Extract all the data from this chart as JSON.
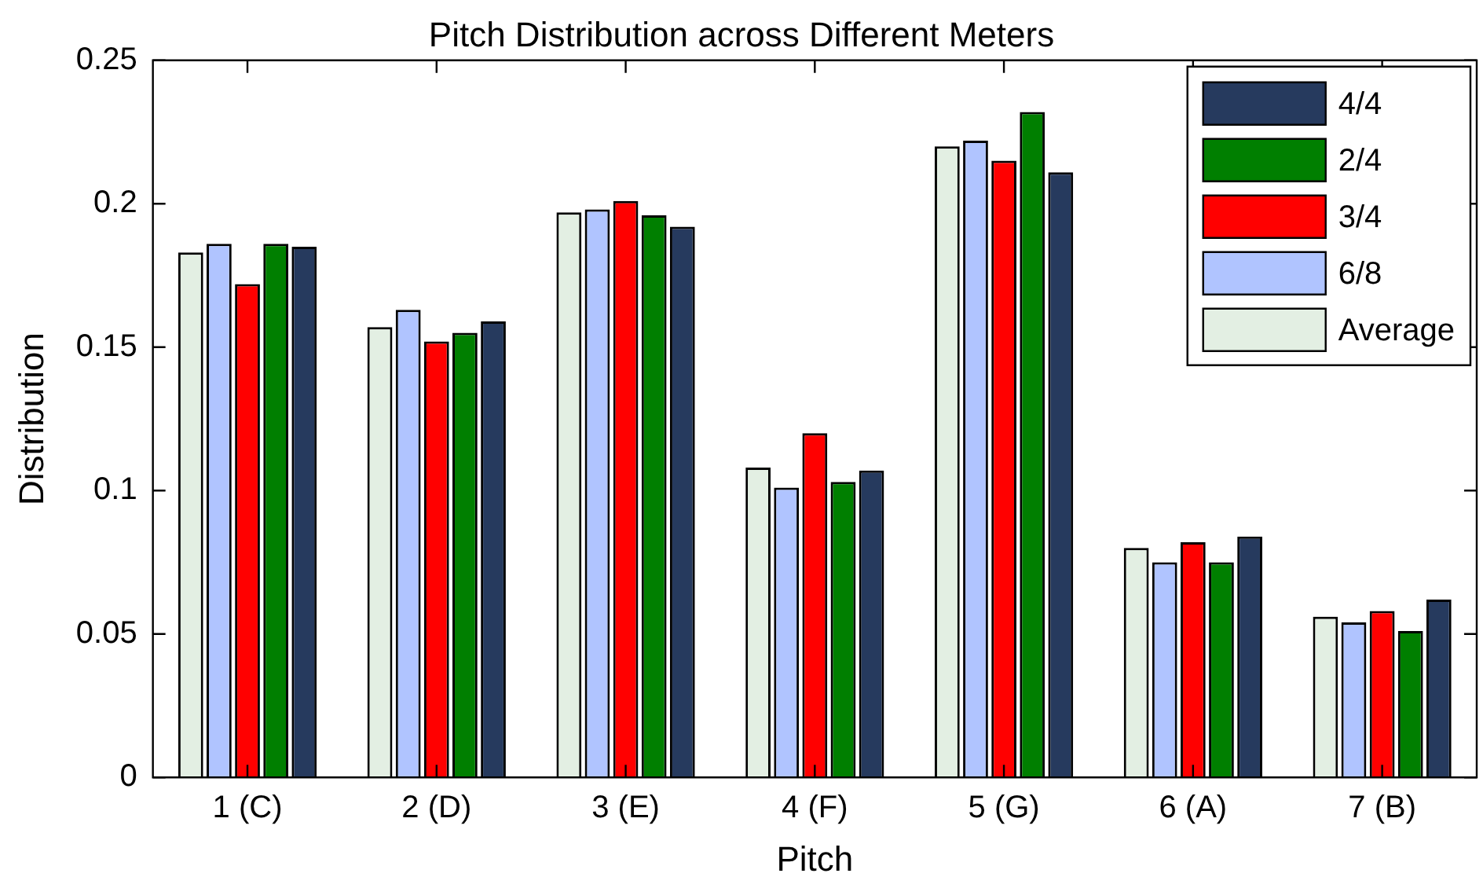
{
  "chart_data": {
    "type": "bar",
    "title": "Pitch Distribution across Different Meters",
    "xlabel": "Pitch",
    "ylabel": "Distribution",
    "categories": [
      "1 (C)",
      "2 (D)",
      "3 (E)",
      "4 (F)",
      "5 (G)",
      "6 (A)",
      "7 (B)"
    ],
    "series": [
      {
        "name": "Average",
        "color": "#e3efe3",
        "values": [
          0.183,
          0.157,
          0.197,
          0.108,
          0.22,
          0.08,
          0.056
        ]
      },
      {
        "name": "6/8",
        "color": "#b0c4ff",
        "values": [
          0.186,
          0.163,
          0.198,
          0.101,
          0.222,
          0.075,
          0.054
        ]
      },
      {
        "name": "3/4",
        "color": "#ff0000",
        "values": [
          0.172,
          0.152,
          0.201,
          0.12,
          0.215,
          0.082,
          0.058
        ]
      },
      {
        "name": "2/4",
        "color": "#007f00",
        "values": [
          0.186,
          0.155,
          0.196,
          0.103,
          0.232,
          0.075,
          0.051
        ]
      },
      {
        "name": "4/4",
        "color": "#263a5e",
        "values": [
          0.185,
          0.159,
          0.192,
          0.107,
          0.211,
          0.084,
          0.062
        ]
      }
    ],
    "ylim": [
      0,
      0.25
    ],
    "yticks": [
      0,
      0.05,
      0.1,
      0.15,
      0.2,
      0.25
    ],
    "grid": false,
    "legend": "top right"
  }
}
